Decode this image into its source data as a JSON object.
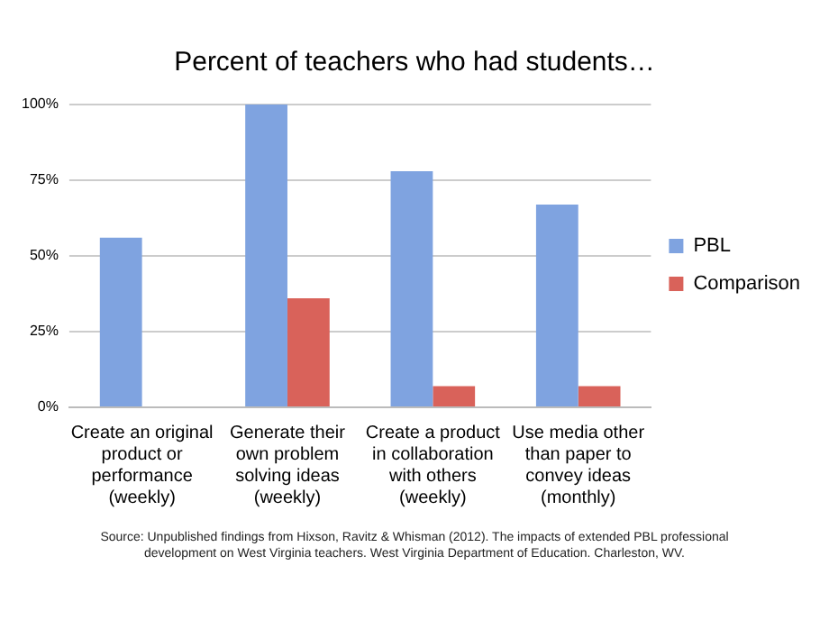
{
  "chart_data": {
    "type": "bar",
    "title": "Percent of teachers who had students…",
    "categories": [
      "Create an original\nproduct or\nperformance\n(weekly)",
      "Generate their\nown problem\nsolving ideas\n(weekly)",
      "Create a product\nin collaboration\nwith others\n(weekly)",
      "Use media other\nthan paper to\nconvey ideas\n(monthly)"
    ],
    "series": [
      {
        "name": "PBL",
        "color": "#7fa3e0",
        "values": [
          56,
          100,
          78,
          67
        ]
      },
      {
        "name": "Comparison",
        "color": "#d9625a",
        "values": [
          0,
          36,
          7,
          7
        ]
      }
    ],
    "ylim": [
      0,
      100
    ],
    "yticks": [
      {
        "value": 0,
        "label": "0%"
      },
      {
        "value": 25,
        "label": "25%"
      },
      {
        "value": 50,
        "label": "50%"
      },
      {
        "value": 75,
        "label": "75%"
      },
      {
        "value": 100,
        "label": "100%"
      }
    ],
    "grid": "y",
    "legend": "right",
    "annotations": [
      "Source: Unpublished findings from Hixson, Ravitz & Whisman (2012).  The impacts of extended PBL professional development on West Virginia teachers. West Virginia Department of Education. Charleston, WV."
    ]
  }
}
